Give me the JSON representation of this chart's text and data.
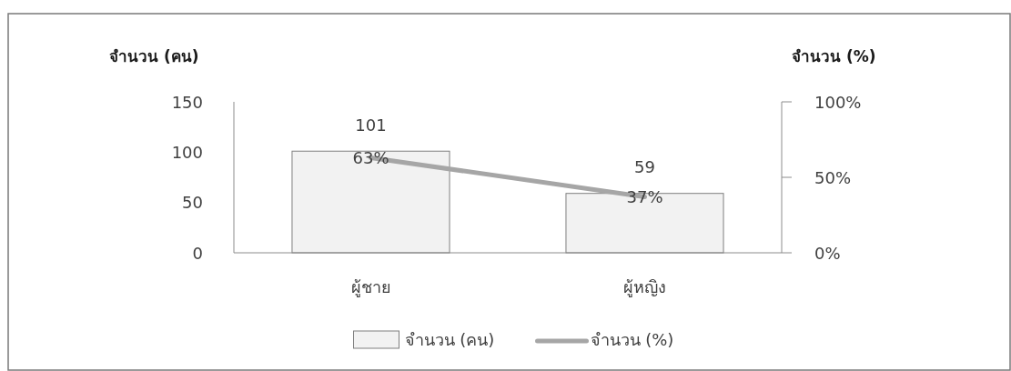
{
  "chart_data": {
    "type": "bar",
    "categories": [
      "ผู้ชาย",
      "ผู้หญิง"
    ],
    "ylabel": "จำนวน (คน)",
    "y2label": "จำนวน (%)",
    "ylim": [
      0,
      150
    ],
    "yticks": [
      0,
      50,
      100,
      150
    ],
    "y2lim": [
      0,
      100
    ],
    "y2ticks": [
      {
        "value": 0,
        "label": "0%"
      },
      {
        "value": 50,
        "label": "50%"
      },
      {
        "value": 100,
        "label": "100%"
      }
    ],
    "series": [
      {
        "name": "จำนวน (คน)",
        "color": "#f2f2f2",
        "values": [
          101,
          59
        ],
        "value_labels": [
          "101",
          "59"
        ]
      },
      {
        "name": "จำนวน (%)",
        "type": "line",
        "axis": "y2",
        "color": "#a6a6a6",
        "values": [
          63,
          37
        ],
        "value_labels": [
          "63%",
          "37%"
        ]
      }
    ],
    "legend": "bottom"
  }
}
